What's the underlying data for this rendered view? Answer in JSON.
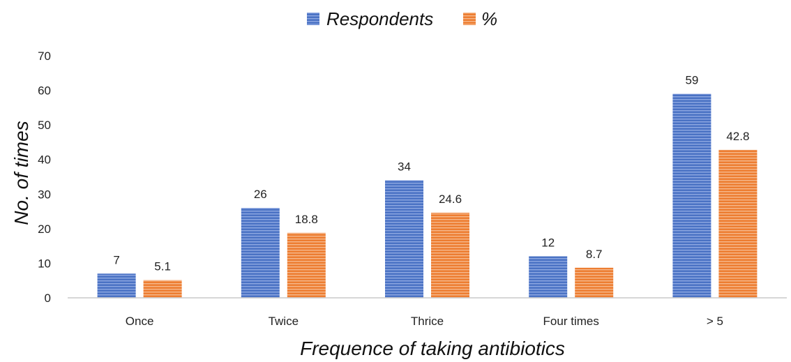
{
  "chart_data": {
    "type": "bar",
    "categories": [
      "Once",
      "Twice",
      "Thrice",
      "Four times",
      "> 5"
    ],
    "series": [
      {
        "name": "Respondents",
        "values": [
          7,
          26,
          34,
          12,
          59
        ],
        "labels": [
          "7",
          "26",
          "34",
          "12",
          "59"
        ],
        "color": "#4a72c4",
        "stripe": "#8fa9e2"
      },
      {
        "name": "%",
        "values": [
          5.1,
          18.8,
          24.6,
          8.7,
          42.8
        ],
        "labels": [
          "5.1",
          "18.8",
          "24.6",
          "8.7",
          "42.8"
        ],
        "color": "#ed7d31",
        "stripe": "#f6b98d"
      }
    ],
    "xlabel": "Frequence of taking antibiotics",
    "ylabel": "No. of times",
    "ylim": [
      0,
      70
    ],
    "yticks": [
      "0",
      "10",
      "20",
      "30",
      "40",
      "50",
      "60",
      "70"
    ],
    "grid": false,
    "legend_position": "top"
  }
}
